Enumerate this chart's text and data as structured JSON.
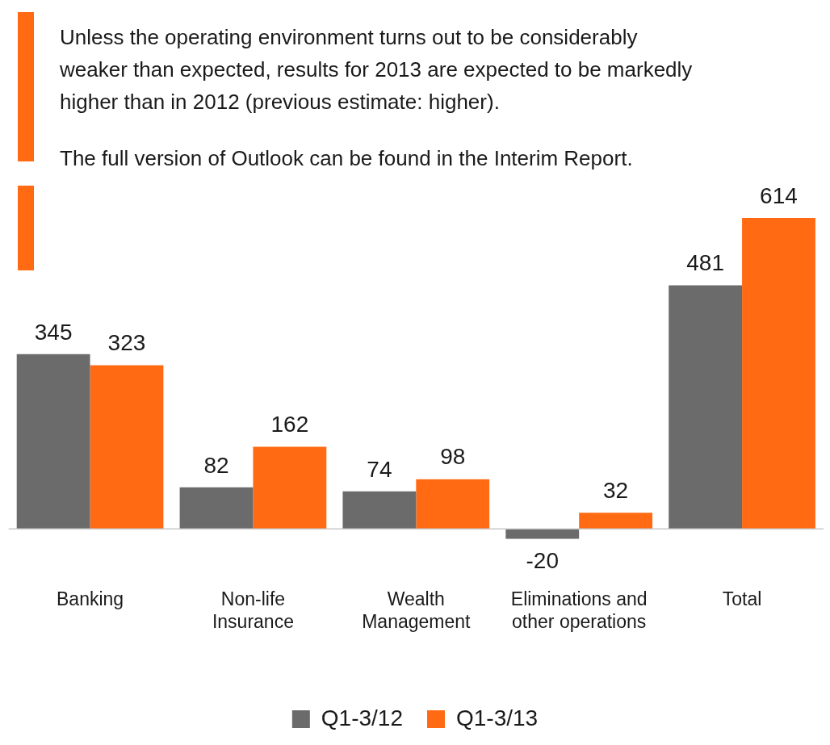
{
  "chart_data": {
    "type": "bar",
    "categories": [
      "Banking",
      "Non-life Insurance",
      "Wealth Management",
      "Eliminations and other operations",
      "Total"
    ],
    "series": [
      {
        "name": "Q1-3/12",
        "color": "#6b6b6b",
        "values": [
          345,
          82,
          74,
          -20,
          481
        ]
      },
      {
        "name": "Q1-3/13",
        "color": "#ff6a13",
        "values": [
          323,
          162,
          98,
          32,
          614
        ]
      }
    ],
    "data_labels": true,
    "legend": "bottom",
    "grid": false,
    "annotations": [
      "Unless the operating environment turns out to be considerably weaker than expected, results for 2013 are expected to be markedly higher than in 2012 (previous estimate: higher).",
      "The full version of Outlook can be found in the Interim Report."
    ]
  }
}
